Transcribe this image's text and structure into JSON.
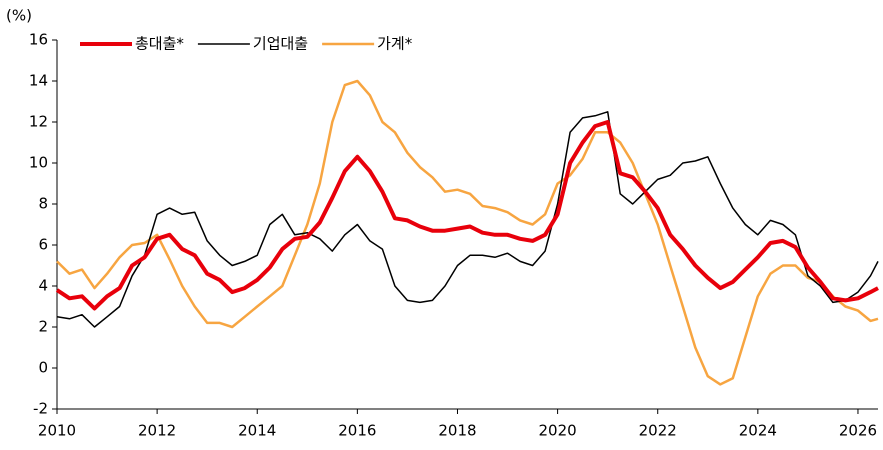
{
  "chart_data": {
    "type": "line",
    "ylabel": "(%)",
    "x": [
      2010,
      2010.25,
      2010.5,
      2010.75,
      2011,
      2011.25,
      2011.5,
      2011.75,
      2012,
      2012.25,
      2012.5,
      2012.75,
      2013,
      2013.25,
      2013.5,
      2013.75,
      2014,
      2014.25,
      2014.5,
      2014.75,
      2015,
      2015.25,
      2015.5,
      2015.75,
      2016,
      2016.25,
      2016.5,
      2016.75,
      2017,
      2017.25,
      2017.5,
      2017.75,
      2018,
      2018.25,
      2018.5,
      2018.75,
      2019,
      2019.25,
      2019.5,
      2019.75,
      2020,
      2020.25,
      2020.5,
      2020.75,
      2021,
      2021.25,
      2021.5,
      2021.75,
      2022,
      2022.25,
      2022.5,
      2022.75,
      2023,
      2023.25,
      2023.5,
      2023.75,
      2024,
      2024.25,
      2024.5,
      2024.75,
      2025,
      2025.25,
      2025.5,
      2025.75,
      2026,
      2026.25,
      2026.4
    ],
    "series": [
      {
        "name": "총대출*",
        "color": "#e8000b",
        "values": [
          3.8,
          3.4,
          3.5,
          2.9,
          3.5,
          3.9,
          5.0,
          5.4,
          6.3,
          6.5,
          5.8,
          5.5,
          4.6,
          4.3,
          3.7,
          3.9,
          4.3,
          4.9,
          5.8,
          6.3,
          6.4,
          7.1,
          8.3,
          9.6,
          10.3,
          9.6,
          8.6,
          7.3,
          7.2,
          6.9,
          6.7,
          6.7,
          6.8,
          6.9,
          6.6,
          6.5,
          6.5,
          6.3,
          6.2,
          6.5,
          7.5,
          10.0,
          11.0,
          11.8,
          12.0,
          9.5,
          9.3,
          8.6,
          7.8,
          6.5,
          5.8,
          5.0,
          4.4,
          3.9,
          4.2,
          4.8,
          5.4,
          6.1,
          6.2,
          5.9,
          4.9,
          4.2,
          3.4,
          3.3,
          3.4,
          3.7,
          3.9
        ]
      },
      {
        "name": "기업대출",
        "color": "#000000",
        "values": [
          2.5,
          2.4,
          2.6,
          2.0,
          2.5,
          3.0,
          4.5,
          5.5,
          7.5,
          7.8,
          7.5,
          7.6,
          6.2,
          5.5,
          5.0,
          5.2,
          5.5,
          7.0,
          7.5,
          6.5,
          6.6,
          6.3,
          5.7,
          6.5,
          7.0,
          6.2,
          5.8,
          4.0,
          3.3,
          3.2,
          3.3,
          4.0,
          5.0,
          5.5,
          5.5,
          5.4,
          5.6,
          5.2,
          5.0,
          5.7,
          8.0,
          11.5,
          12.2,
          12.3,
          12.5,
          8.5,
          8.0,
          8.6,
          9.2,
          9.4,
          10.0,
          10.1,
          10.3,
          9.0,
          7.8,
          7.0,
          6.5,
          7.2,
          7.0,
          6.5,
          4.5,
          4.0,
          3.2,
          3.3,
          3.7,
          4.5,
          5.2
        ]
      },
      {
        "name": "가계*",
        "color": "#f7a541",
        "values": [
          5.2,
          4.6,
          4.8,
          3.9,
          4.6,
          5.4,
          6.0,
          6.1,
          6.5,
          5.3,
          4.0,
          3.0,
          2.2,
          2.2,
          2.0,
          2.5,
          3.0,
          3.5,
          4.0,
          5.5,
          7.0,
          9.0,
          12.0,
          13.8,
          14.0,
          13.3,
          12.0,
          11.5,
          10.5,
          9.8,
          9.3,
          8.6,
          8.7,
          8.5,
          7.9,
          7.8,
          7.6,
          7.2,
          7.0,
          7.5,
          9.0,
          9.4,
          10.2,
          11.5,
          11.5,
          11.0,
          10.0,
          8.5,
          7.0,
          5.0,
          3.0,
          1.0,
          -0.4,
          -0.8,
          -0.5,
          1.5,
          3.5,
          4.6,
          5.0,
          5.0,
          4.4,
          4.2,
          3.5,
          3.0,
          2.8,
          2.3,
          2.4
        ]
      }
    ],
    "xlim": [
      2010,
      2026.4
    ],
    "xticks": [
      2010,
      2012,
      2014,
      2016,
      2018,
      2020,
      2022,
      2024,
      2026
    ],
    "ylim": [
      -2,
      16
    ],
    "yticks": [
      -2,
      0,
      2,
      4,
      6,
      8,
      10,
      12,
      14,
      16
    ],
    "legend": "top"
  }
}
